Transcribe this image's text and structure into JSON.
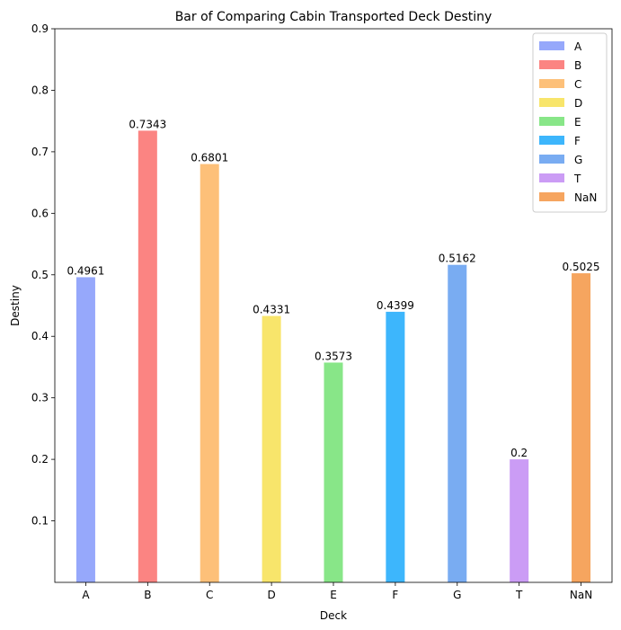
{
  "chart_data": {
    "type": "bar",
    "title": "Bar of Comparing Cabin Transported Deck Destiny",
    "xlabel": "Deck",
    "ylabel": "Destiny",
    "categories": [
      "A",
      "B",
      "C",
      "D",
      "E",
      "F",
      "G",
      "T",
      "NaN"
    ],
    "values": [
      0.4961,
      0.7343,
      0.6801,
      0.4331,
      0.3573,
      0.4399,
      0.5162,
      0.2,
      0.5025
    ],
    "data_labels": [
      "0.4961",
      "0.7343",
      "0.6801",
      "0.4331",
      "0.3573",
      "0.4399",
      "0.5162",
      "0.2",
      "0.5025"
    ],
    "colors": [
      "#96a8fb",
      "#fb8482",
      "#fdc079",
      "#f8e56b",
      "#88e688",
      "#3db6fc",
      "#79acf2",
      "#cb9cf5",
      "#f6a55f"
    ],
    "ylim": [
      0,
      0.9
    ],
    "yticks": [
      0.1,
      0.2,
      0.3,
      0.4,
      0.5,
      0.6,
      0.7,
      0.8,
      0.9
    ],
    "ytick_labels": [
      "0.1",
      "0.2",
      "0.3",
      "0.4",
      "0.5",
      "0.6",
      "0.7",
      "0.8",
      "0.9"
    ],
    "legend": {
      "position": "top-right",
      "entries": [
        "A",
        "B",
        "C",
        "D",
        "E",
        "F",
        "G",
        "T",
        "NaN"
      ]
    },
    "grid": false
  }
}
